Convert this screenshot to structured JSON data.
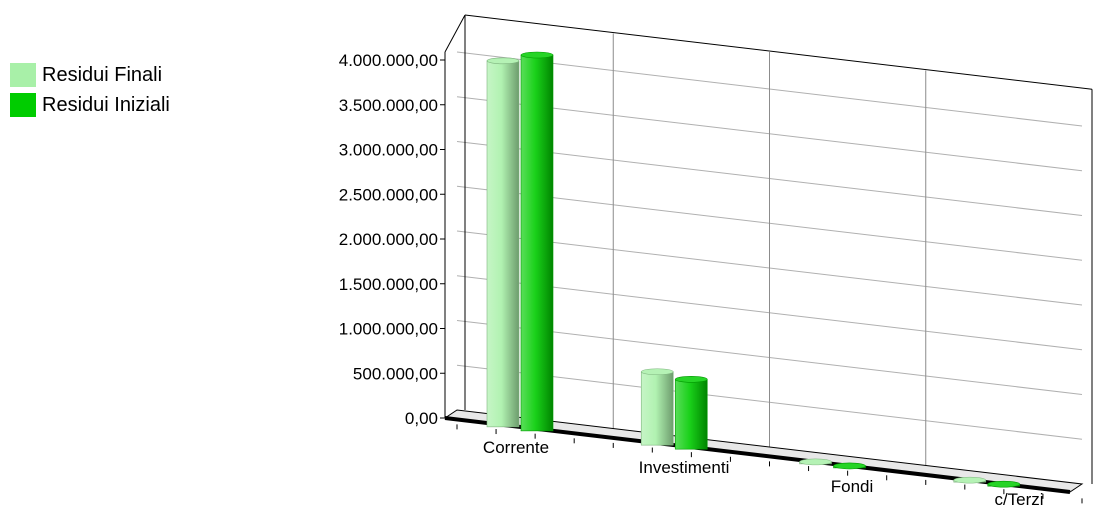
{
  "chart_data": {
    "type": "bar",
    "title": "",
    "xlabel": "",
    "ylabel": "",
    "categories": [
      "Corrente",
      "Investimenti",
      "Fondi",
      "c/Terzi"
    ],
    "series": [
      {
        "name": "Residui Finali",
        "values": [
          4090000,
          820000,
          8000,
          6000
        ],
        "color": "#a8f0a8"
      },
      {
        "name": "Residui Iniziali",
        "values": [
          4200000,
          780000,
          9000,
          7000
        ],
        "color": "#00cc00"
      }
    ],
    "ylim": [
      0,
      4000000
    ],
    "yticks": [
      "0,00",
      "500.000,00",
      "1.000.000,00",
      "1.500.000,00",
      "2.000.000,00",
      "2.500.000,00",
      "3.000.000,00",
      "3.500.000,00",
      "4.000.000,00"
    ],
    "grid": true,
    "legend": "left",
    "style": "3d"
  }
}
